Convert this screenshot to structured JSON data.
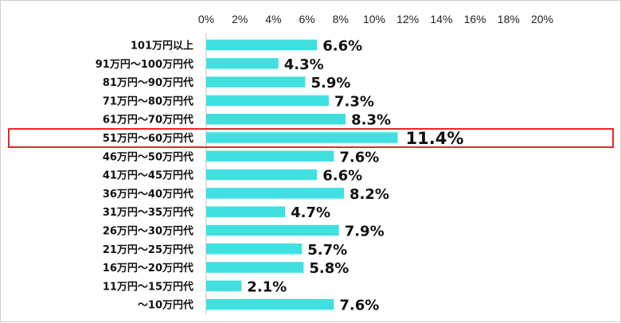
{
  "chart_data": {
    "type": "bar",
    "orientation": "horizontal",
    "categories": [
      "101万円以上",
      "91万円〜100万円代",
      "81万円〜90万円代",
      "71万円〜80万円代",
      "61万円〜70万円代",
      "51万円〜60万円代",
      "46万円〜50万円代",
      "41万円〜45万円代",
      "36万円〜40万円代",
      "31万円〜35万円代",
      "26万円〜30万円代",
      "21万円〜25万円代",
      "16万円〜20万円代",
      "11万円〜15万円代",
      "〜10万円代"
    ],
    "values": [
      6.6,
      4.3,
      5.9,
      7.3,
      8.3,
      11.4,
      7.6,
      6.6,
      8.2,
      4.7,
      7.9,
      5.7,
      5.8,
      2.1,
      7.6
    ],
    "value_labels": [
      "6.6%",
      "4.3%",
      "5.9%",
      "7.3%",
      "8.3%",
      "11.4%",
      "7.6%",
      "6.6%",
      "8.2%",
      "4.7%",
      "7.9%",
      "5.7%",
      "5.8%",
      "2.1%",
      "7.6%"
    ],
    "x_ticks": [
      "0%",
      "2%",
      "4%",
      "6%",
      "8%",
      "10%",
      "12%",
      "14%",
      "16%",
      "18%",
      "20%"
    ],
    "xlim": [
      0,
      20
    ],
    "tick_axis_position": "top",
    "grid": false,
    "highlighted_category": "51万円〜60万円代",
    "colors": {
      "bar": "#40E0E0",
      "highlight_border": "#E8262A",
      "text": "#111111"
    }
  }
}
